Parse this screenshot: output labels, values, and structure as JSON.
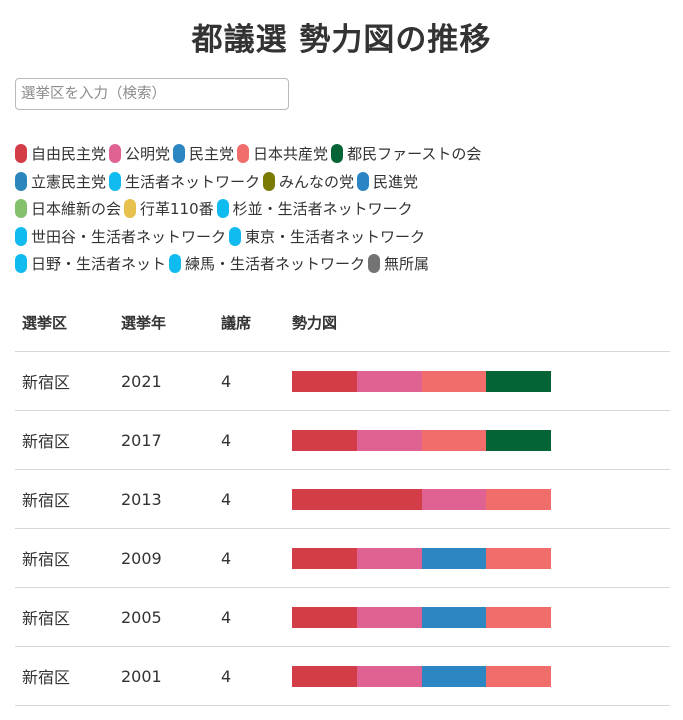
{
  "page": {
    "title": "都議選 勢力図の推移"
  },
  "search": {
    "placeholder": "選挙区を入力（検索）",
    "value": ""
  },
  "legend": [
    [
      {
        "key": "jimin",
        "label": "自由民主党",
        "color": "#d33d48"
      },
      {
        "key": "komei",
        "label": "公明党",
        "color": "#df6293"
      },
      {
        "key": "minshu",
        "label": "民主党",
        "color": "#2b86c1"
      },
      {
        "key": "kyosan",
        "label": "日本共産党",
        "color": "#f06d6b"
      },
      {
        "key": "tomin",
        "label": "都民ファーストの会",
        "color": "#046436"
      }
    ],
    [
      {
        "key": "rikken",
        "label": "立憲民主党",
        "color": "#2a86bb"
      },
      {
        "key": "seikatsu_net",
        "label": "生活者ネットワーク",
        "color": "#10bbef"
      },
      {
        "key": "minna",
        "label": "みんなの党",
        "color": "#7b7b04"
      },
      {
        "key": "minshin",
        "label": "民進党",
        "color": "#2b84c4"
      }
    ],
    [
      {
        "key": "ishin",
        "label": "日本維新の会",
        "color": "#84c16c"
      },
      {
        "key": "gyokaku",
        "label": "行革110番",
        "color": "#e6c14d"
      },
      {
        "key": "suginami_net",
        "label": "杉並・生活者ネットワーク",
        "color": "#10bbef"
      }
    ],
    [
      {
        "key": "setagaya_net",
        "label": "世田谷・生活者ネットワーク",
        "color": "#10bbef"
      },
      {
        "key": "tokyo_net",
        "label": "東京・生活者ネットワーク",
        "color": "#10bbef"
      }
    ],
    [
      {
        "key": "hino_net",
        "label": "日野・生活者ネット",
        "color": "#10bbef"
      },
      {
        "key": "nerima_net",
        "label": "練馬・生活者ネットワーク",
        "color": "#10bbef"
      },
      {
        "key": "mushozoku",
        "label": "無所属",
        "color": "#737373"
      }
    ]
  ],
  "table": {
    "headers": [
      "選挙区",
      "選挙年",
      "議席",
      "勢力図"
    ],
    "rows": [
      {
        "district": "新宿区",
        "year": "2021",
        "seats": "4",
        "parties": [
          "jimin",
          "komei",
          "kyosan",
          "tomin"
        ]
      },
      {
        "district": "新宿区",
        "year": "2017",
        "seats": "4",
        "parties": [
          "jimin",
          "komei",
          "kyosan",
          "tomin"
        ]
      },
      {
        "district": "新宿区",
        "year": "2013",
        "seats": "4",
        "parties": [
          "jimin",
          "jimin",
          "komei",
          "kyosan"
        ]
      },
      {
        "district": "新宿区",
        "year": "2009",
        "seats": "4",
        "parties": [
          "jimin",
          "komei",
          "minshu",
          "kyosan"
        ]
      },
      {
        "district": "新宿区",
        "year": "2005",
        "seats": "4",
        "parties": [
          "jimin",
          "komei",
          "minshu",
          "kyosan"
        ]
      },
      {
        "district": "新宿区",
        "year": "2001",
        "seats": "4",
        "parties": [
          "jimin",
          "komei",
          "minshu",
          "kyosan"
        ]
      }
    ]
  }
}
